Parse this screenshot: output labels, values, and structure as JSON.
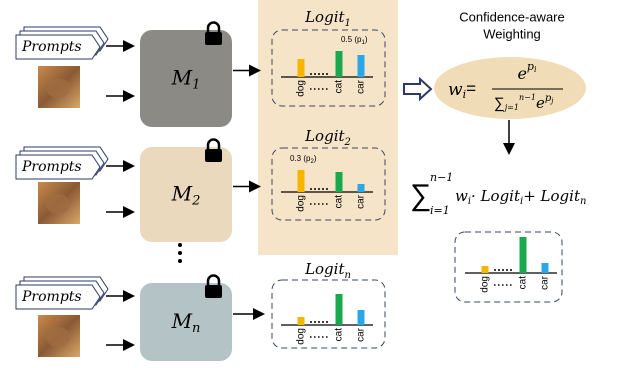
{
  "rows": [
    {
      "prompt": "Prompts",
      "model": "M",
      "model_sub": "1",
      "logit": "Logit",
      "logit_sub": "1",
      "note": "0.5 (p",
      "note_sub": "1",
      "note_end": ")",
      "labels": [
        "dog",
        "cat",
        "car"
      ]
    },
    {
      "prompt": "Prompts",
      "model": "M",
      "model_sub": "2",
      "logit": "Logit",
      "logit_sub": "2",
      "note": "0.3 (p",
      "note_sub": "2",
      "note_end": ")",
      "labels": [
        "dog",
        "cat",
        "car"
      ]
    },
    {
      "prompt": "Prompts",
      "model": "M",
      "model_sub": "n",
      "logit": "Logit",
      "logit_sub": "n",
      "labels": [
        "dog",
        "cat",
        "car"
      ]
    }
  ],
  "weighting": {
    "title_line1": "Confidence-aware",
    "title_line2": "Weighting",
    "lhs": "w",
    "lhs_sub": "i",
    "eq": "=",
    "num": "e",
    "num_sup": "p",
    "num_sup_sub": "i",
    "den_sum": "∑",
    "den_sub": "j=1",
    "den_sup": "n−1",
    "den_e": "e",
    "den_e_sup": "p",
    "den_e_sup_sub": "j"
  },
  "aggregation": {
    "sum": "∑",
    "sum_sub": "i=1",
    "sum_sup": "n−1",
    "w": "w",
    "w_sub": "i",
    "mid": "· Logit",
    "mid_sub": "i",
    "plus": "+ Logit",
    "plus_sub": "n"
  },
  "result": {
    "labels": [
      "dog",
      "cat",
      "car"
    ]
  }
}
